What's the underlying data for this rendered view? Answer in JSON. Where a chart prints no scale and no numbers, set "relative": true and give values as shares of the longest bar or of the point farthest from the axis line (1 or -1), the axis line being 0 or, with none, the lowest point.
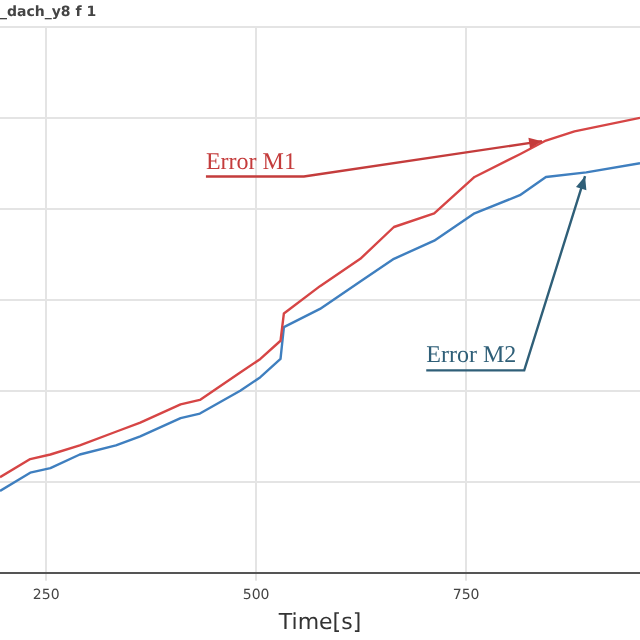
{
  "chart_data": {
    "type": "line",
    "title": "_dach_y8 f 1",
    "xlabel": "Time[s]",
    "relative": true,
    "xlim": [
      195,
      957
    ],
    "xticks": [
      250,
      500,
      750
    ],
    "grid": true,
    "legend": false,
    "marker": "none",
    "line_style": "solid",
    "series": [
      {
        "color": "#d64545",
        "x": [
          195,
          231,
          255,
          290,
          333,
          362,
          410,
          433,
          481,
          505,
          529,
          533,
          576,
          624,
          664,
          712,
          760,
          814,
          845,
          879,
          957
        ],
        "values": [
          0.21,
          0.25,
          0.26,
          0.28,
          0.31,
          0.33,
          0.37,
          0.38,
          0.44,
          0.47,
          0.51,
          0.57,
          0.63,
          0.69,
          0.76,
          0.79,
          0.87,
          0.92,
          0.95,
          0.97,
          1.0
        ]
      },
      {
        "color": "#3f7fbf",
        "x": [
          195,
          231,
          255,
          290,
          333,
          362,
          410,
          433,
          481,
          505,
          529,
          533,
          576,
          624,
          664,
          712,
          760,
          814,
          845,
          893,
          957
        ],
        "values": [
          0.18,
          0.22,
          0.23,
          0.26,
          0.28,
          0.3,
          0.34,
          0.35,
          0.4,
          0.43,
          0.47,
          0.54,
          0.58,
          0.64,
          0.69,
          0.73,
          0.79,
          0.83,
          0.87,
          0.88,
          0.9
        ]
      }
    ],
    "annotations": [
      {
        "text": "Error M1",
        "x": 845,
        "y": 0.95
      },
      {
        "text": "Error M2",
        "x": 893,
        "y": 0.88
      }
    ]
  }
}
